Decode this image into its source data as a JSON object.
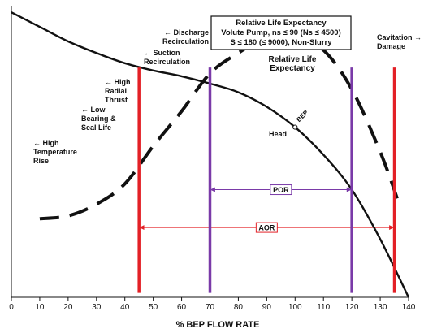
{
  "chart_data": {
    "type": "line",
    "xlabel": "% BEP FLOW RATE",
    "ylabel": "",
    "xlim": [
      0,
      140
    ],
    "ylim": [
      0,
      100
    ],
    "xticks": [
      0,
      10,
      20,
      30,
      40,
      50,
      60,
      70,
      80,
      90,
      100,
      110,
      120,
      130,
      140
    ],
    "grid": false,
    "legend": "none",
    "title_box": {
      "lines": [
        "Relative Life Expectancy",
        "Volute Pump, ns ≤ 90 (Ns ≤ 4500)",
        "S ≤ 180 (≤ 9000), Non-Slurry"
      ]
    },
    "series": [
      {
        "name": "Head",
        "style": "solid",
        "color": "#111111",
        "x": [
          0,
          10,
          20,
          30,
          40,
          50,
          60,
          70,
          80,
          90,
          100,
          110,
          120,
          130,
          140
        ],
        "y": [
          98,
          93,
          88,
          84,
          80.5,
          78,
          76,
          73.5,
          70.5,
          65.5,
          58.5,
          49,
          37,
          20,
          0
        ]
      },
      {
        "name": "Relative Life Expectancy",
        "style": "dashed",
        "color": "#111111",
        "x": [
          10,
          20,
          30,
          40,
          50,
          60,
          70,
          80,
          90,
          100,
          110,
          120,
          130,
          136
        ],
        "y": [
          27,
          28,
          32,
          39,
          52,
          64,
          77,
          84,
          89.5,
          90,
          85,
          71.5,
          50,
          34
        ]
      }
    ],
    "vertical_lines": [
      {
        "x": 45,
        "color": "#e32026",
        "label": "Suction Recirculation"
      },
      {
        "x": 70,
        "color": "#7a3aa8",
        "label": "Discharge Recirculation"
      },
      {
        "x": 120,
        "color": "#7a3aa8",
        "label": ""
      },
      {
        "x": 135,
        "color": "#e32026",
        "label": "Cavitation Damage"
      }
    ],
    "ranges": [
      {
        "label": "POR",
        "from": 70,
        "to": 120,
        "color": "#7a3aa8",
        "y": 37
      },
      {
        "label": "AOR",
        "from": 45,
        "to": 135,
        "color": "#e32026",
        "y": 24
      }
    ],
    "bep_point": {
      "x": 100,
      "y": 58.5,
      "label": "BEP"
    },
    "annotations": [
      {
        "id": "discharge",
        "lines": [
          "← Discharge",
          "Recirculation"
        ]
      },
      {
        "id": "suction",
        "lines": [
          "← Suction",
          "Recirculation"
        ]
      },
      {
        "id": "radial",
        "lines": [
          "← High",
          "Radial",
          "Thrust"
        ]
      },
      {
        "id": "bearing",
        "lines": [
          "← Low",
          "Bearing &",
          "Seal Life"
        ]
      },
      {
        "id": "temp",
        "lines": [
          "← High",
          "Temperature",
          "Rise"
        ]
      },
      {
        "id": "cavitation",
        "lines": [
          "Cavitation →",
          "Damage"
        ]
      },
      {
        "id": "rle",
        "lines": [
          "Relative Life",
          "Expectancy"
        ]
      },
      {
        "id": "head",
        "lines": [
          "Head"
        ]
      }
    ]
  }
}
